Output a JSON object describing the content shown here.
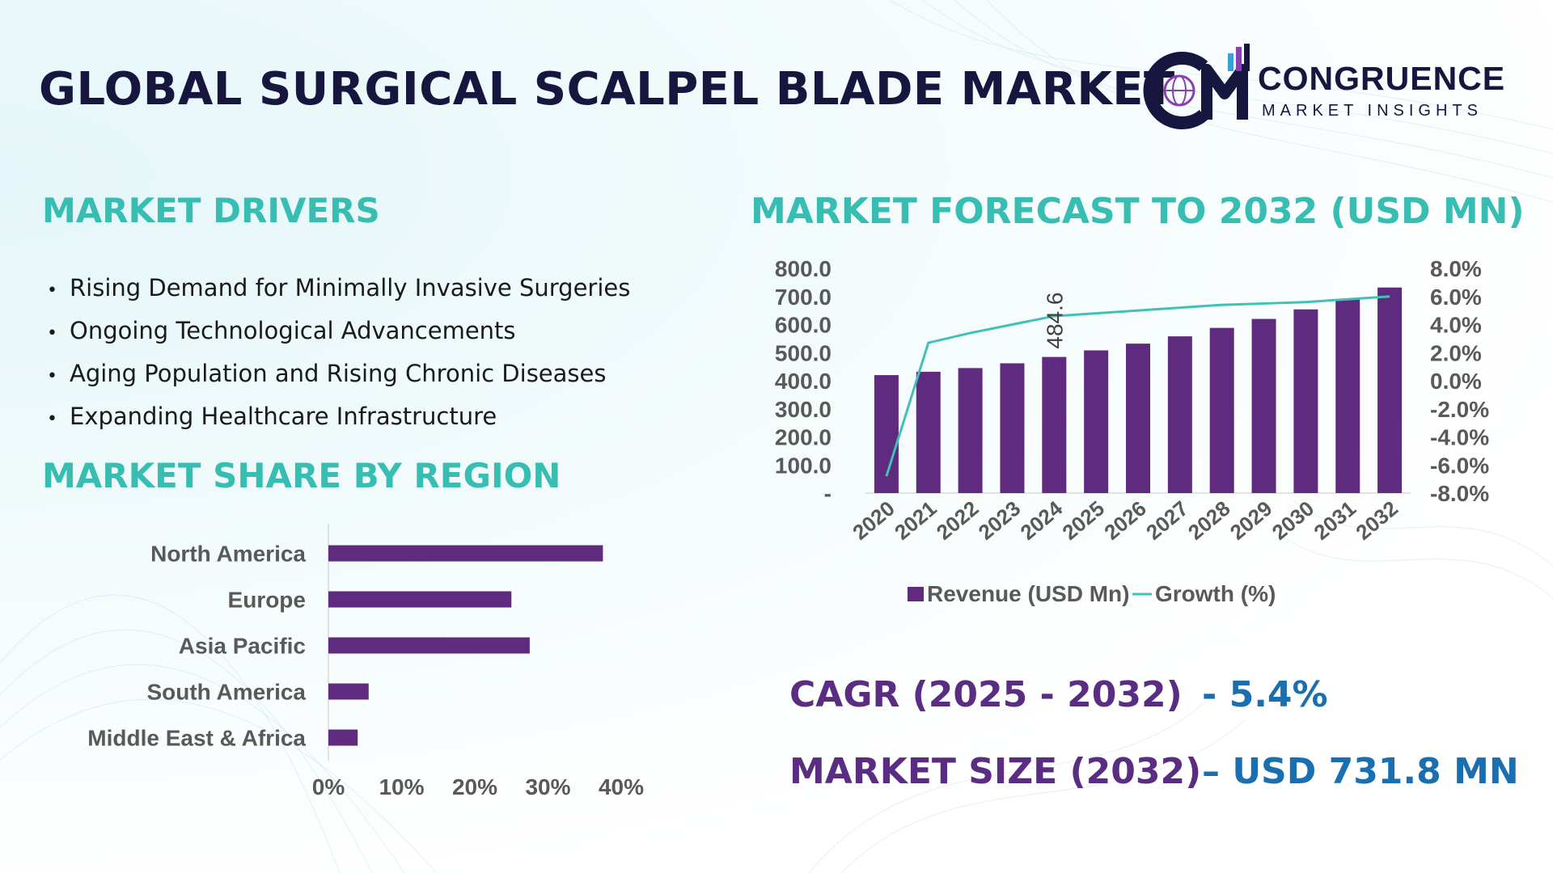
{
  "header": {
    "title": "GLOBAL SURGICAL SCALPEL BLADE MARKET",
    "logo_name": "CONGRUENCE",
    "logo_sub": "MARKET INSIGHTS"
  },
  "drivers": {
    "heading": "MARKET DRIVERS",
    "items": [
      "Rising Demand for Minimally Invasive Surgeries",
      "Ongoing Technological Advancements",
      "Aging Population and Rising Chronic Diseases",
      "Expanding Healthcare Infrastructure"
    ]
  },
  "region": {
    "heading": "MARKET SHARE BY REGION"
  },
  "forecast": {
    "heading": "MARKET FORECAST TO 2032 (USD MN)"
  },
  "stats": {
    "cagr_label": "CAGR (2025 - 2032)",
    "cagr_value": "- 5.4%",
    "size_label": "MARKET SIZE (2032)",
    "size_value": "– USD 731.8 MN"
  },
  "colors": {
    "bar": "#5e2b7e",
    "line": "#3fc1b7",
    "heading": "#38bdb3",
    "title": "#16163f",
    "stat_label": "#5a2d82",
    "stat_value": "#1a6fb0"
  },
  "chart_data": [
    {
      "type": "bar",
      "orientation": "horizontal",
      "categories": [
        "North America",
        "Europe",
        "Asia Pacific",
        "South America",
        "Middle East & Africa"
      ],
      "values": [
        0.375,
        0.25,
        0.275,
        0.055,
        0.04
      ],
      "xlim": [
        0,
        0.4
      ],
      "xticks": [
        "0%",
        "10%",
        "20%",
        "30%",
        "40%"
      ],
      "grid": false
    },
    {
      "type": "bar",
      "categories": [
        "2020",
        "2021",
        "2022",
        "2023",
        "2024",
        "2025",
        "2026",
        "2027",
        "2028",
        "2029",
        "2030",
        "2031",
        "2032"
      ],
      "series": [
        {
          "name": "Revenue (USD Mn)",
          "type": "bar",
          "axis": "left",
          "values": [
            420,
            432,
            445,
            462,
            484.6,
            508,
            532,
            558,
            588,
            620,
            654,
            690,
            731.8
          ]
        },
        {
          "name": "Growth (%)",
          "type": "line",
          "axis": "right",
          "values": [
            -6.8,
            2.7,
            3.4,
            4.0,
            4.6,
            4.8,
            5.0,
            5.2,
            5.4,
            5.5,
            5.6,
            5.8,
            6.0
          ]
        }
      ],
      "ylim": [
        0,
        800
      ],
      "yticks": [
        "-",
        "100.0",
        "200.0",
        "300.0",
        "400.0",
        "500.0",
        "600.0",
        "700.0",
        "800.0"
      ],
      "y2lim": [
        -8,
        8
      ],
      "y2ticks": [
        "-8.0%",
        "-6.0%",
        "-4.0%",
        "-2.0%",
        "0.0%",
        "2.0%",
        "4.0%",
        "6.0%",
        "8.0%"
      ],
      "annotations": [
        {
          "category": "2024",
          "text": "484.6"
        }
      ],
      "legend_position": "bottom",
      "grid": false
    }
  ]
}
